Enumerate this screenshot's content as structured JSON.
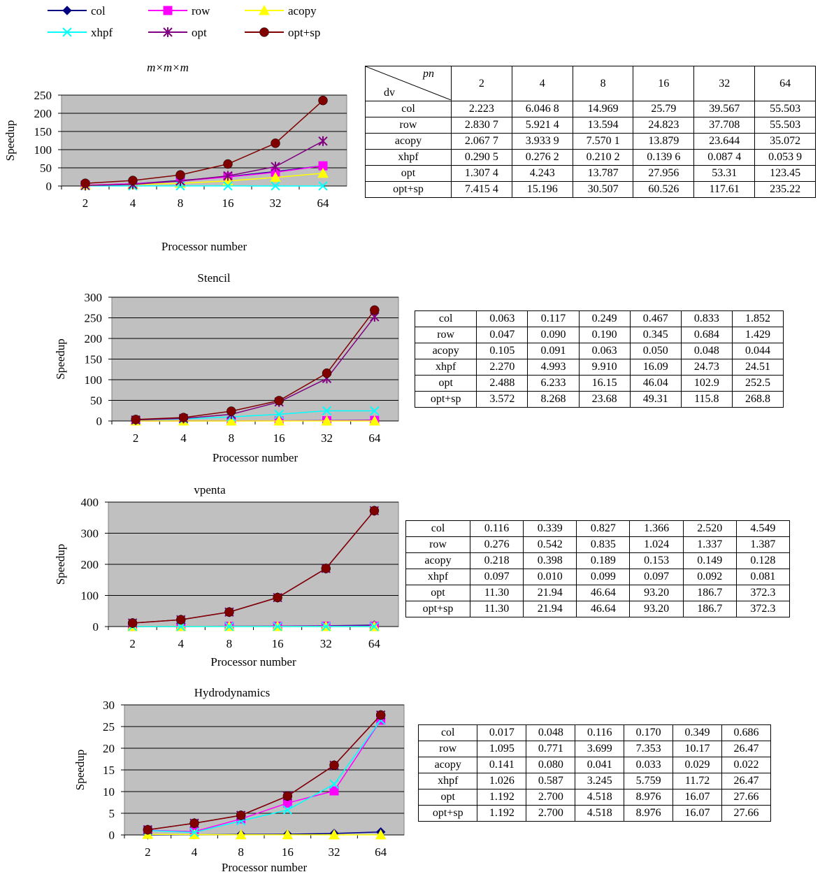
{
  "legend": [
    {
      "name": "col",
      "color": "#000080",
      "marker": "diamond"
    },
    {
      "name": "row",
      "color": "#ff00ff",
      "marker": "square"
    },
    {
      "name": "acopy",
      "color": "#ffff00",
      "marker": "triangle"
    },
    {
      "name": "xhpf",
      "color": "#00ffff",
      "marker": "x"
    },
    {
      "name": "opt",
      "color": "#800080",
      "marker": "star"
    },
    {
      "name": "opt+sp",
      "color": "#800000",
      "marker": "circle"
    }
  ],
  "chart_data": [
    {
      "type": "line",
      "title": "m×m×m",
      "xlabel": "Processor number",
      "ylabel": "Speedup",
      "categories": [
        "2",
        "4",
        "8",
        "16",
        "32",
        "64"
      ],
      "ylim": [
        0,
        250
      ],
      "yticks": [
        0,
        50,
        100,
        150,
        200,
        250
      ],
      "series": [
        {
          "name": "col",
          "values": [
            2.223,
            6.0468,
            14.969,
            25.79,
            39.567,
            55.503
          ]
        },
        {
          "name": "row",
          "values": [
            2.8307,
            5.9214,
            13.594,
            24.823,
            37.708,
            55.503
          ]
        },
        {
          "name": "acopy",
          "values": [
            2.0677,
            3.9339,
            7.5701,
            13.879,
            23.644,
            35.072
          ]
        },
        {
          "name": "xhpf",
          "values": [
            0.2905,
            0.2762,
            0.2102,
            0.1396,
            0.0874,
            0.0539
          ]
        },
        {
          "name": "opt",
          "values": [
            1.3074,
            4.243,
            13.787,
            27.956,
            53.31,
            123.45
          ]
        },
        {
          "name": "opt+sp",
          "values": [
            7.4154,
            15.196,
            30.507,
            60.526,
            117.61,
            235.22
          ]
        }
      ]
    },
    {
      "type": "line",
      "title": "Stencil",
      "xlabel": "Processor number",
      "ylabel": "Speedup",
      "categories": [
        "2",
        "4",
        "8",
        "16",
        "32",
        "64"
      ],
      "ylim": [
        0,
        300
      ],
      "yticks": [
        0,
        50,
        100,
        150,
        200,
        250,
        300
      ],
      "series": [
        {
          "name": "col",
          "values": [
            0.063,
            0.117,
            0.249,
            0.467,
            0.833,
            1.852
          ]
        },
        {
          "name": "row",
          "values": [
            0.047,
            0.09,
            0.19,
            0.345,
            0.684,
            1.429
          ]
        },
        {
          "name": "acopy",
          "values": [
            0.105,
            0.091,
            0.063,
            0.05,
            0.048,
            0.044
          ]
        },
        {
          "name": "xhpf",
          "values": [
            2.27,
            4.993,
            9.91,
            16.09,
            24.73,
            24.51
          ]
        },
        {
          "name": "opt",
          "values": [
            2.488,
            6.233,
            16.15,
            46.04,
            102.9,
            252.5
          ]
        },
        {
          "name": "opt+sp",
          "values": [
            3.572,
            8.268,
            23.68,
            49.31,
            115.8,
            268.8
          ]
        }
      ]
    },
    {
      "type": "line",
      "title": "vpenta",
      "xlabel": "Processor number",
      "ylabel": "Speedup",
      "categories": [
        "2",
        "4",
        "8",
        "16",
        "32",
        "64"
      ],
      "ylim": [
        0,
        400
      ],
      "yticks": [
        0,
        100,
        200,
        300,
        400
      ],
      "series": [
        {
          "name": "col",
          "values": [
            0.116,
            0.339,
            0.827,
            1.366,
            2.52,
            4.549
          ]
        },
        {
          "name": "row",
          "values": [
            0.276,
            0.542,
            0.835,
            1.024,
            1.337,
            1.387
          ]
        },
        {
          "name": "acopy",
          "values": [
            0.218,
            0.398,
            0.189,
            0.153,
            0.149,
            0.128
          ]
        },
        {
          "name": "xhpf",
          "values": [
            0.097,
            0.01,
            0.099,
            0.097,
            0.092,
            0.081
          ]
        },
        {
          "name": "opt",
          "values": [
            11.3,
            21.94,
            46.64,
            93.2,
            186.7,
            372.3
          ]
        },
        {
          "name": "opt+sp",
          "values": [
            11.3,
            21.94,
            46.64,
            93.2,
            186.7,
            372.3
          ]
        }
      ]
    },
    {
      "type": "line",
      "title": "Hydrodynamics",
      "xlabel": "Processor number",
      "ylabel": "Speedup",
      "categories": [
        "2",
        "4",
        "8",
        "16",
        "32",
        "64"
      ],
      "ylim": [
        0,
        30
      ],
      "yticks": [
        0,
        5,
        10,
        15,
        20,
        25,
        30
      ],
      "series": [
        {
          "name": "col",
          "values": [
            0.017,
            0.048,
            0.116,
            0.17,
            0.349,
            0.686
          ]
        },
        {
          "name": "row",
          "values": [
            1.095,
            0.771,
            3.699,
            7.353,
            10.17,
            26.47
          ]
        },
        {
          "name": "acopy",
          "values": [
            0.141,
            0.08,
            0.041,
            0.033,
            0.029,
            0.022
          ]
        },
        {
          "name": "xhpf",
          "values": [
            1.026,
            0.587,
            3.245,
            5.759,
            11.72,
            26.47
          ]
        },
        {
          "name": "opt",
          "values": [
            1.192,
            2.7,
            4.518,
            8.976,
            16.07,
            27.66
          ]
        },
        {
          "name": "opt+sp",
          "values": [
            1.192,
            2.7,
            4.518,
            8.976,
            16.07,
            27.66
          ]
        }
      ]
    }
  ],
  "tables": [
    {
      "corner_top": "pn",
      "corner_bottom": "dv",
      "header": [
        "2",
        "4",
        "8",
        "16",
        "32",
        "64"
      ],
      "rows": [
        [
          "col",
          "2.223",
          "6.046 8",
          "14.969",
          "25.79",
          "39.567",
          "55.503"
        ],
        [
          "row",
          "2.830 7",
          "5.921 4",
          "13.594",
          "24.823",
          "37.708",
          "55.503"
        ],
        [
          "acopy",
          "2.067 7",
          "3.933 9",
          "7.570 1",
          "13.879",
          "23.644",
          "35.072"
        ],
        [
          "xhpf",
          "0.290 5",
          "0.276 2",
          "0.210 2",
          "0.139 6",
          "0.087 4",
          "0.053 9"
        ],
        [
          "opt",
          "1.307 4",
          "4.243",
          "13.787",
          "27.956",
          "53.31",
          "123.45"
        ],
        [
          "opt+sp",
          "7.415 4",
          "15.196",
          "30.507",
          "60.526",
          "117.61",
          "235.22"
        ]
      ]
    },
    {
      "rows": [
        [
          "col",
          "0.063",
          "0.117",
          "0.249",
          "0.467",
          "0.833",
          "1.852"
        ],
        [
          "row",
          "0.047",
          "0.090",
          "0.190",
          "0.345",
          "0.684",
          "1.429"
        ],
        [
          "acopy",
          "0.105",
          "0.091",
          "0.063",
          "0.050",
          "0.048",
          "0.044"
        ],
        [
          "xhpf",
          "2.270",
          "4.993",
          "9.910",
          "16.09",
          "24.73",
          "24.51"
        ],
        [
          "opt",
          "2.488",
          "6.233",
          "16.15",
          "46.04",
          "102.9",
          "252.5"
        ],
        [
          "opt+sp",
          "3.572",
          "8.268",
          "23.68",
          "49.31",
          "115.8",
          "268.8"
        ]
      ]
    },
    {
      "rows": [
        [
          "col",
          "0.116",
          "0.339",
          "0.827",
          "1.366",
          "2.520",
          "4.549"
        ],
        [
          "row",
          "0.276",
          "0.542",
          "0.835",
          "1.024",
          "1.337",
          "1.387"
        ],
        [
          "acopy",
          "0.218",
          "0.398",
          "0.189",
          "0.153",
          "0.149",
          "0.128"
        ],
        [
          "xhpf",
          "0.097",
          "0.010",
          "0.099",
          "0.097",
          "0.092",
          "0.081"
        ],
        [
          "opt",
          "11.30",
          "21.94",
          "46.64",
          "93.20",
          "186.7",
          "372.3"
        ],
        [
          "opt+sp",
          "11.30",
          "21.94",
          "46.64",
          "93.20",
          "186.7",
          "372.3"
        ]
      ]
    },
    {
      "rows": [
        [
          "col",
          "0.017",
          "0.048",
          "0.116",
          "0.170",
          "0.349",
          "0.686"
        ],
        [
          "row",
          "1.095",
          "0.771",
          "3.699",
          "7.353",
          "10.17",
          "26.47"
        ],
        [
          "acopy",
          "0.141",
          "0.080",
          "0.041",
          "0.033",
          "0.029",
          "0.022"
        ],
        [
          "xhpf",
          "1.026",
          "0.587",
          "3.245",
          "5.759",
          "11.72",
          "26.47"
        ],
        [
          "opt",
          "1.192",
          "2.700",
          "4.518",
          "8.976",
          "16.07",
          "27.66"
        ],
        [
          "opt+sp",
          "1.192",
          "2.700",
          "4.518",
          "8.976",
          "16.07",
          "27.66"
        ]
      ]
    }
  ]
}
